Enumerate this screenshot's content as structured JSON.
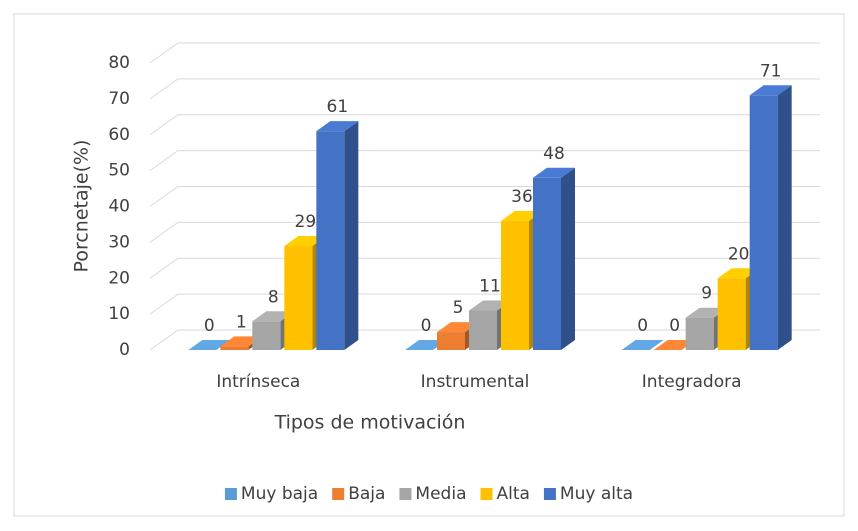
{
  "chart_data": {
    "type": "bar3d",
    "x_label": "Tipos de motivación",
    "y_label": "Porcnetaje(%)",
    "categories": [
      "Intrínseca",
      "Instrumental",
      "Integradora"
    ],
    "series": [
      {
        "name": "Muy baja",
        "color": "#5b9bd5",
        "values": [
          0,
          0,
          0
        ]
      },
      {
        "name": "Baja",
        "color": "#ed7d31",
        "values": [
          1,
          5,
          0
        ]
      },
      {
        "name": "Media",
        "color": "#a5a5a5",
        "values": [
          8,
          11,
          9
        ]
      },
      {
        "name": "Alta",
        "color": "#ffc000",
        "values": [
          29,
          36,
          20
        ]
      },
      {
        "name": "Muy alta",
        "color": "#4472c4",
        "values": [
          61,
          48,
          71
        ]
      }
    ],
    "ylim": [
      0,
      80
    ],
    "yticks": [
      0,
      10,
      20,
      30,
      40,
      50,
      60,
      70,
      80
    ],
    "grid": true,
    "legend": "bottom"
  }
}
